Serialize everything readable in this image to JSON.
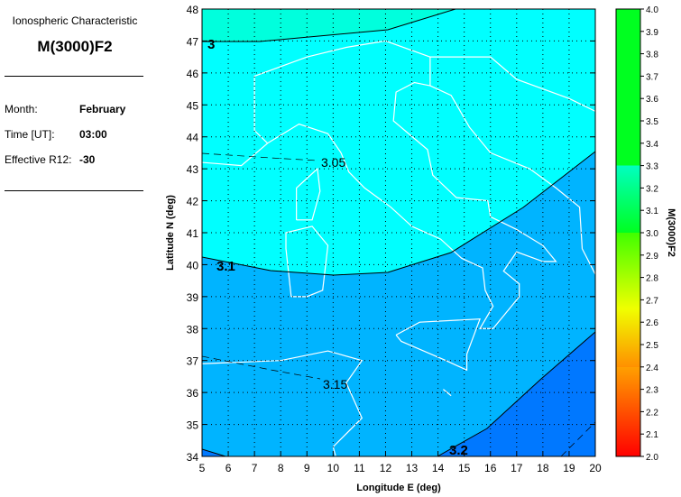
{
  "info": {
    "subtitle": "Ionospheric Characteristic",
    "title": "M(3000)F2",
    "month_label": "Month:",
    "month_value": "February",
    "time_label": "Time [UT]:",
    "time_value": "03:00",
    "r12_label": "Effective R12:",
    "r12_value": "-30"
  },
  "map": {
    "xlabel": "Longitude E (deg)",
    "ylabel": "Latitude N (deg)",
    "xlim": [
      5,
      20
    ],
    "ylim": [
      34,
      48
    ],
    "xticks": [
      "5",
      "6",
      "7",
      "8",
      "9",
      "10",
      "11",
      "12",
      "13",
      "14",
      "15",
      "16",
      "17",
      "18",
      "19",
      "20"
    ],
    "yticks": [
      "34",
      "35",
      "36",
      "37",
      "38",
      "39",
      "40",
      "41",
      "42",
      "43",
      "44",
      "45",
      "46",
      "47",
      "48"
    ],
    "grid": "dotted",
    "contour_labels": [
      "3",
      "3.05",
      "3.1",
      "3.15",
      "3.2"
    ],
    "band_colors": {
      "below_3.0": "#00ffdd",
      "3.0-3.1": "#00ffff",
      "3.1-3.2": "#00b4ff",
      "above_3.2": "#0078ff"
    },
    "coastline_color": "#ffffff"
  },
  "colorbar": {
    "label": "M(3000)F2",
    "range": [
      2.0,
      4.0
    ],
    "ticks": [
      "4.0",
      "3.9",
      "3.8",
      "3.7",
      "3.6",
      "3.5",
      "3.4",
      "3.3",
      "3.2",
      "3.1",
      "3.0",
      "2.9",
      "2.8",
      "2.7",
      "2.6",
      "2.5",
      "2.4",
      "2.3",
      "2.2",
      "2.1",
      "2.0"
    ]
  }
}
